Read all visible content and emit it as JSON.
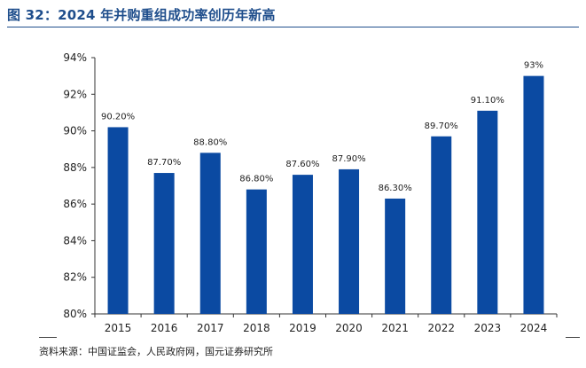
{
  "header": {
    "title": "图 32：2024 年并购重组成功率创历年新高"
  },
  "footer": {
    "source": "资料来源：中国证监会，人民政府网，国元证券研究所"
  },
  "colors": {
    "bar": "#0b4aa2",
    "title": "#1f4e8c",
    "axis": "#333333",
    "text": "#222222"
  },
  "chart_data": {
    "type": "bar",
    "categories": [
      "2015",
      "2016",
      "2017",
      "2018",
      "2019",
      "2020",
      "2021",
      "2022",
      "2023",
      "2024"
    ],
    "values": [
      90.2,
      87.7,
      88.8,
      86.8,
      87.6,
      87.9,
      86.3,
      89.7,
      91.1,
      93
    ],
    "data_labels": [
      "90.20%",
      "87.70%",
      "88.80%",
      "86.80%",
      "87.60%",
      "87.90%",
      "86.30%",
      "89.70%",
      "91.10%",
      "93%"
    ],
    "ylim": [
      80,
      94
    ],
    "yticks": [
      80,
      82,
      84,
      86,
      88,
      90,
      92,
      94
    ],
    "ytick_labels": [
      "80%",
      "82%",
      "84%",
      "86%",
      "88%",
      "90%",
      "92%",
      "94%"
    ],
    "grid": false,
    "legend": "none",
    "title": "",
    "xlabel": "",
    "ylabel": ""
  }
}
